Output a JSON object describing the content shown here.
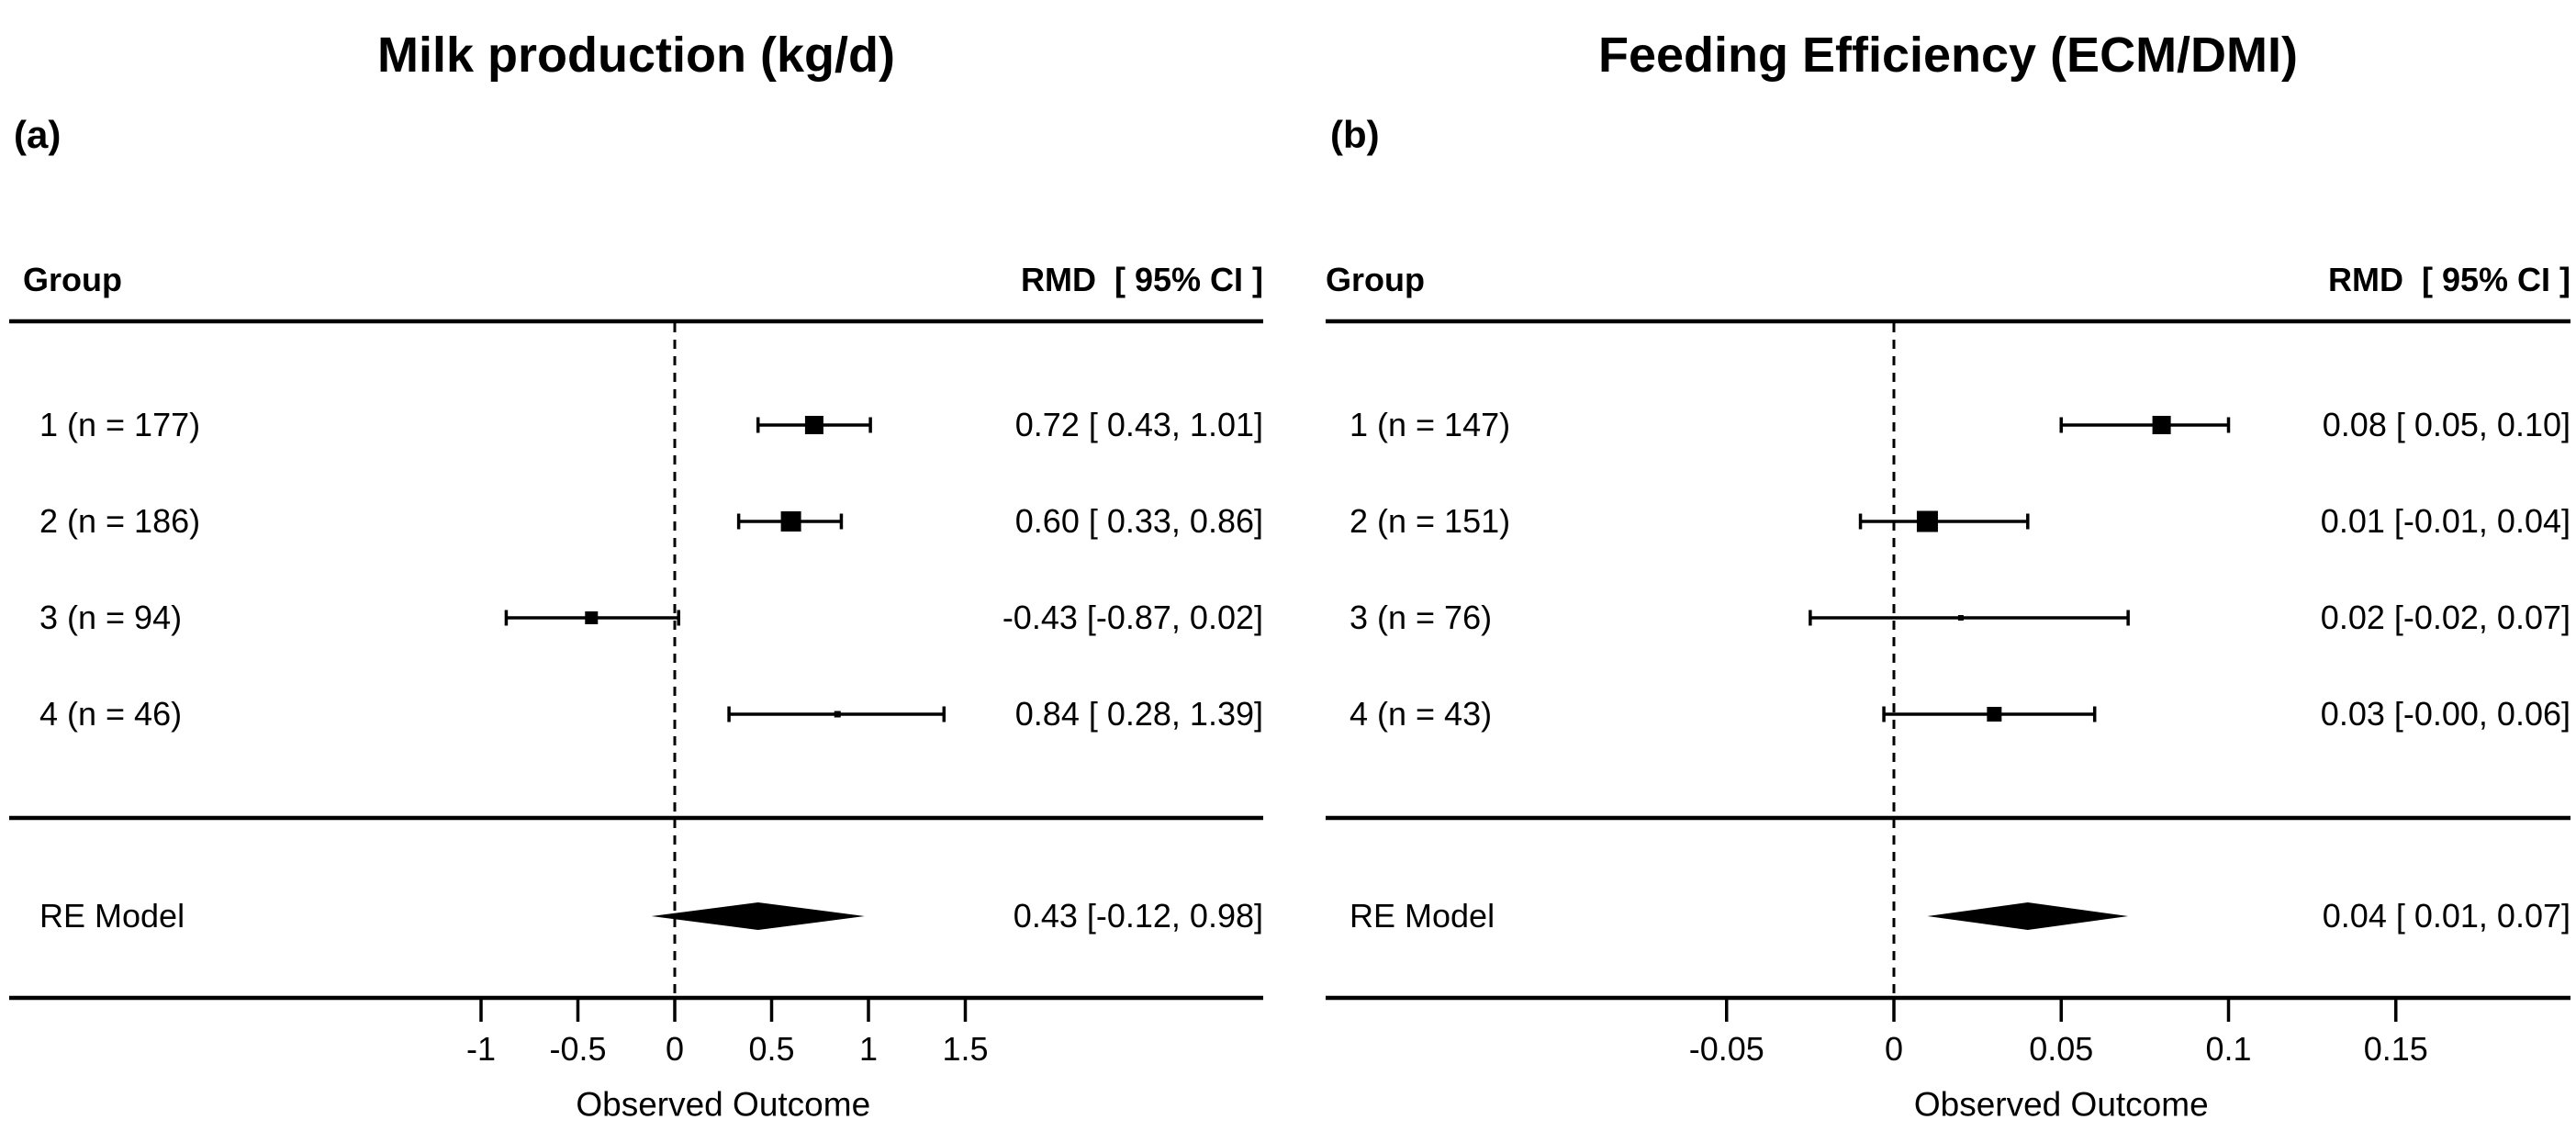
{
  "chart_data": [
    {
      "type": "forest",
      "panel_label": "(a)",
      "title": "Milk production (kg/d)",
      "group_header": "Group",
      "effect_header": "RMD  [ 95% CI ]",
      "xlabel": "Observed Outcome",
      "x_axis": {
        "ticks": [
          -1,
          -0.5,
          0,
          0.5,
          1,
          1.5
        ],
        "tick_labels": [
          "-1",
          "-0.5",
          "0",
          "0.5",
          "1",
          "1.5"
        ],
        "reference_line": 0
      },
      "legend_position": "none",
      "grid": false,
      "rows": [
        {
          "label": "1 (n = 177)",
          "estimate": 0.72,
          "ci_low": 0.43,
          "ci_high": 1.01,
          "text": "0.72 [ 0.43, 1.01]",
          "marker_px": 20
        },
        {
          "label": "2 (n = 186)",
          "estimate": 0.6,
          "ci_low": 0.33,
          "ci_high": 0.86,
          "text": "0.60 [ 0.33, 0.86]",
          "marker_px": 22
        },
        {
          "label": "3 (n = 94)",
          "estimate": -0.43,
          "ci_low": -0.87,
          "ci_high": 0.02,
          "text": "-0.43 [-0.87, 0.02]",
          "marker_px": 14
        },
        {
          "label": "4 (n = 46)",
          "estimate": 0.84,
          "ci_low": 0.28,
          "ci_high": 1.39,
          "text": "0.84 [ 0.28, 1.39]",
          "marker_px": 7
        }
      ],
      "summary": {
        "label": "RE Model",
        "estimate": 0.43,
        "ci_low": -0.12,
        "ci_high": 0.98,
        "text": "0.43 [-0.12, 0.98]"
      }
    },
    {
      "type": "forest",
      "panel_label": "(b)",
      "title": "Feeding Efficiency (ECM/DMI)",
      "group_header": "Group",
      "effect_header": "RMD  [ 95% CI ]",
      "xlabel": "Observed Outcome",
      "x_axis": {
        "ticks": [
          -0.05,
          0,
          0.05,
          0.1,
          0.15
        ],
        "tick_labels": [
          "-0.05",
          "0",
          "0.05",
          "0.1",
          "0.15"
        ],
        "reference_line": 0
      },
      "legend_position": "none",
      "grid": false,
      "rows": [
        {
          "label": "1 (n = 147)",
          "estimate": 0.08,
          "ci_low": 0.05,
          "ci_high": 0.1,
          "text": "0.08 [ 0.05, 0.10]",
          "marker_px": 20
        },
        {
          "label": "2 (n = 151)",
          "estimate": 0.01,
          "ci_low": -0.01,
          "ci_high": 0.04,
          "text": "0.01 [-0.01, 0.04]",
          "marker_px": 23
        },
        {
          "label": "3 (n = 76)",
          "estimate": 0.02,
          "ci_low": -0.025,
          "ci_high": 0.07,
          "text": "0.02 [-0.02, 0.07]",
          "marker_px": 6
        },
        {
          "label": "4 (n = 43)",
          "estimate": 0.03,
          "ci_low": -0.003,
          "ci_high": 0.06,
          "text": "0.03 [-0.00, 0.06]",
          "marker_px": 16
        }
      ],
      "summary": {
        "label": "RE Model",
        "estimate": 0.04,
        "ci_low": 0.01,
        "ci_high": 0.07,
        "text": "0.04 [ 0.01, 0.07]"
      }
    }
  ]
}
